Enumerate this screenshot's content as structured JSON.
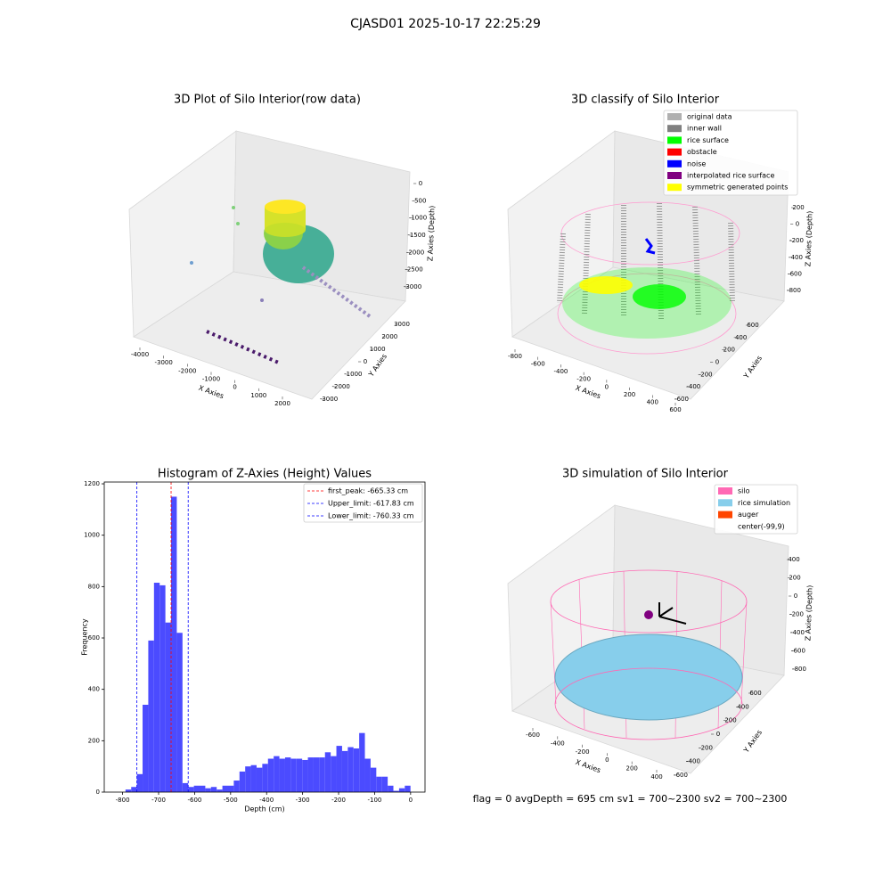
{
  "title": "CJASD01 2025-10-17 22:25:29",
  "footer": "flag = 0     avgDepth = 695 cm  sv1 = 700~2300  sv2 = 700~2300",
  "chart_data": [
    {
      "type": "scatter3d",
      "title": "3D Plot of Silo Interior(row data)",
      "xlabel": "X Axies",
      "ylabel": "Y Axies",
      "zlabel": "Z Axies (Depth)",
      "xlim": [
        -4000,
        2000
      ],
      "xticks": [
        -4000,
        -3000,
        -2000,
        -1000,
        0,
        1000,
        2000
      ],
      "ylim": [
        -3000,
        3000
      ],
      "yticks": [
        -3000,
        -2000,
        -1000,
        0,
        1000,
        2000,
        3000
      ],
      "zlim": [
        -3000,
        0
      ],
      "zticks": [
        -3000,
        -2500,
        -2000,
        -1500,
        -1000,
        -500,
        0
      ]
    },
    {
      "type": "scatter3d",
      "title": "3D classify of Silo Interior",
      "xlabel": "X Axies",
      "ylabel": "Y Axies",
      "zlabel": "Z Axies (Depth)",
      "xlim": [
        -800,
        600
      ],
      "xticks": [
        -800,
        -600,
        -400,
        -200,
        0,
        200,
        400,
        600
      ],
      "ylim": [
        -600,
        600
      ],
      "yticks": [
        -600,
        -400,
        -200,
        0,
        200,
        400,
        600
      ],
      "zlim": [
        -800,
        200
      ],
      "zticks": [
        -800,
        -600,
        -400,
        -200,
        0,
        200
      ],
      "series": [
        {
          "name": "original data",
          "color": "#b0b0b0"
        },
        {
          "name": "inner wall",
          "color": "#808080"
        },
        {
          "name": "rice surface",
          "color": "#00ff00"
        },
        {
          "name": "obstacle",
          "color": "#ff0000"
        },
        {
          "name": "noise",
          "color": "#0000ff"
        },
        {
          "name": "interpolated rice surface",
          "color": "#800080"
        },
        {
          "name": "symmetric generated points",
          "color": "#ffff00"
        }
      ]
    },
    {
      "type": "histogram",
      "title": "Histogram of Z-Axies (Height) Values",
      "xlabel": "Depth (cm)",
      "ylabel": "Frequency",
      "color": "#4b4bff",
      "bins": [
        -792.0,
        -776.17,
        -760.33,
        -744.5,
        -728.67,
        -712.83,
        -697.0,
        -681.17,
        -665.33,
        -649.5,
        -633.67,
        -617.83,
        -602.0,
        -586.17,
        -570.33,
        -554.5,
        -538.67,
        -522.83,
        -507.0,
        -491.17,
        -475.33,
        -459.5,
        -443.67,
        -427.83,
        -412.0,
        -396.17,
        -380.33,
        -364.5,
        -348.67,
        -332.83,
        -317.0,
        -301.17,
        -285.33,
        -269.5,
        -253.67,
        -237.83,
        -222.0,
        -206.17,
        -190.33,
        -174.5,
        -158.67,
        -142.83,
        -127.0,
        -111.17,
        -95.33,
        -79.5,
        -63.67,
        -47.83,
        -32.0,
        -16.17,
        -0.33
      ],
      "values": [
        10,
        20,
        70,
        340,
        590,
        815,
        805,
        660,
        1150,
        620,
        35,
        20,
        25,
        25,
        15,
        20,
        10,
        25,
        25,
        45,
        80,
        100,
        105,
        95,
        110,
        130,
        140,
        130,
        135,
        130,
        130,
        125,
        135,
        135,
        135,
        155,
        140,
        180,
        160,
        175,
        170,
        230,
        130,
        95,
        60,
        60,
        25,
        5,
        15,
        25
      ],
      "xlim": [
        -851,
        40
      ],
      "xticks": [
        -800,
        -700,
        -600,
        -500,
        -400,
        -300,
        -200,
        -100,
        0
      ],
      "ylim": [
        0,
        1207
      ],
      "yticks": [
        0,
        200,
        400,
        600,
        800,
        1000,
        1200
      ],
      "vlines": [
        {
          "name": "first_peak: -665.33 cm",
          "value": -665.33,
          "color": "#ff0000"
        },
        {
          "name": "Upper_limit: -617.83 cm",
          "value": -617.83,
          "color": "#0000ff"
        },
        {
          "name": "Lower_limit: -760.33 cm",
          "value": -760.33,
          "color": "#0000ff"
        }
      ]
    },
    {
      "type": "surface3d",
      "title": "3D simulation of Silo Interior",
      "xlabel": "X Axies",
      "ylabel": "Y Axies",
      "zlabel": "Z Axies (Depth)",
      "xlim": [
        -600,
        400
      ],
      "xticks": [
        -600,
        -400,
        -200,
        0,
        200,
        400
      ],
      "ylim": [
        -600,
        600
      ],
      "yticks": [
        -600,
        -400,
        -200,
        0,
        200,
        400,
        600
      ],
      "zlim": [
        -800,
        400
      ],
      "zticks": [
        -800,
        -600,
        -400,
        -200,
        0,
        200,
        400
      ],
      "series": [
        {
          "name": "silo",
          "color": "#ff69b4"
        },
        {
          "name": "rice simulation",
          "color": "#87ceeb"
        },
        {
          "name": "auger",
          "color": "#ff4500"
        },
        {
          "name": "center(-99,9)",
          "color": "#ffffff"
        }
      ]
    }
  ]
}
